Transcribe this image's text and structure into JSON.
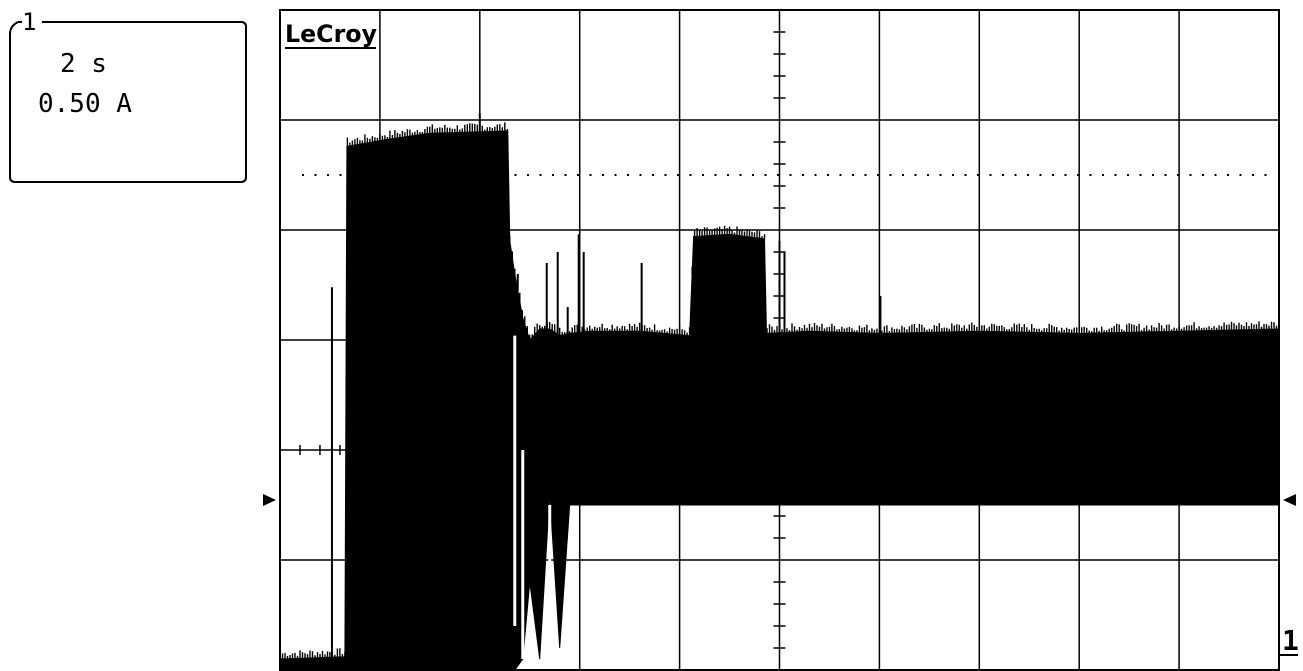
{
  "channel_box": {
    "channel": "1",
    "timebase": "2 s",
    "scale": "0.50 A"
  },
  "brand": "LeCroy",
  "ground_marker": "1",
  "colors": {
    "trace": "#000000",
    "grid": "#000000",
    "background": "#ffffff"
  },
  "chart_data": {
    "type": "line",
    "x_unit": "s",
    "y_unit": "A",
    "x_per_division": 2,
    "y_per_division": 0.5,
    "x_range": [
      0,
      20
    ],
    "y_range": [
      -2.0,
      1.0
    ],
    "grid": true,
    "envelope": [
      {
        "x": 0.0,
        "ymin": -2.0,
        "ymax": -1.95
      },
      {
        "x": 1.3,
        "ymin": -2.0,
        "ymax": -1.94
      },
      {
        "x": 1.34,
        "ymin": -2.0,
        "ymax": 0.38
      },
      {
        "x": 2.1,
        "ymin": -2.0,
        "ymax": 0.41
      },
      {
        "x": 3.0,
        "ymin": -2.0,
        "ymax": 0.44
      },
      {
        "x": 4.56,
        "ymin": -2.0,
        "ymax": 0.45
      },
      {
        "x": 4.6,
        "ymin": -2.0,
        "ymax": -0.05
      },
      {
        "x": 4.7,
        "ymin": -2.0,
        "ymax": -0.2
      },
      {
        "x": 4.86,
        "ymin": -1.95,
        "ymax": -0.4
      },
      {
        "x": 5.0,
        "ymin": -1.6,
        "ymax": -0.5
      },
      {
        "x": 5.2,
        "ymin": -1.95,
        "ymax": -0.45
      },
      {
        "x": 5.4,
        "ymin": -1.2,
        "ymax": -0.45
      },
      {
        "x": 5.6,
        "ymin": -1.9,
        "ymax": -0.48
      },
      {
        "x": 5.8,
        "ymin": -1.25,
        "ymax": -0.47
      },
      {
        "x": 6.2,
        "ymin": -1.25,
        "ymax": -0.46
      },
      {
        "x": 7.2,
        "ymin": -1.25,
        "ymax": -0.46
      },
      {
        "x": 8.2,
        "ymin": -1.25,
        "ymax": -0.48
      },
      {
        "x": 8.28,
        "ymin": -1.25,
        "ymax": -0.03
      },
      {
        "x": 9.0,
        "ymin": -1.25,
        "ymax": -0.02
      },
      {
        "x": 9.7,
        "ymin": -1.25,
        "ymax": -0.04
      },
      {
        "x": 9.74,
        "ymin": -1.25,
        "ymax": -0.47
      },
      {
        "x": 10.6,
        "ymin": -1.25,
        "ymax": -0.46
      },
      {
        "x": 12.0,
        "ymin": -1.25,
        "ymax": -0.47
      },
      {
        "x": 14.0,
        "ymin": -1.25,
        "ymax": -0.46
      },
      {
        "x": 16.0,
        "ymin": -1.25,
        "ymax": -0.47
      },
      {
        "x": 18.0,
        "ymin": -1.25,
        "ymax": -0.46
      },
      {
        "x": 20.0,
        "ymin": -1.25,
        "ymax": -0.45
      }
    ],
    "spikes": [
      {
        "x": 1.04,
        "y": -0.26
      },
      {
        "x": 4.0,
        "y": 0.53
      },
      {
        "x": 4.76,
        "y": -0.2
      },
      {
        "x": 5.34,
        "y": -0.15
      },
      {
        "x": 5.56,
        "y": -0.1
      },
      {
        "x": 5.76,
        "y": -0.35
      },
      {
        "x": 5.98,
        "y": -0.02
      },
      {
        "x": 6.08,
        "y": -0.1
      },
      {
        "x": 7.24,
        "y": -0.15
      },
      {
        "x": 10.0,
        "y": -0.05
      },
      {
        "x": 10.1,
        "y": -0.1
      },
      {
        "x": 12.02,
        "y": -0.3
      }
    ],
    "dropouts": [
      {
        "x": 1.04,
        "y_top": 0.38,
        "y_bottom": 0.12
      },
      {
        "x": 4.7,
        "y_top": -0.48,
        "y_bottom": -1.8
      },
      {
        "x": 4.86,
        "y_top": -1.0,
        "y_bottom": -1.95
      },
      {
        "x": 5.4,
        "y_top": -1.25,
        "y_bottom": -1.95
      }
    ]
  }
}
